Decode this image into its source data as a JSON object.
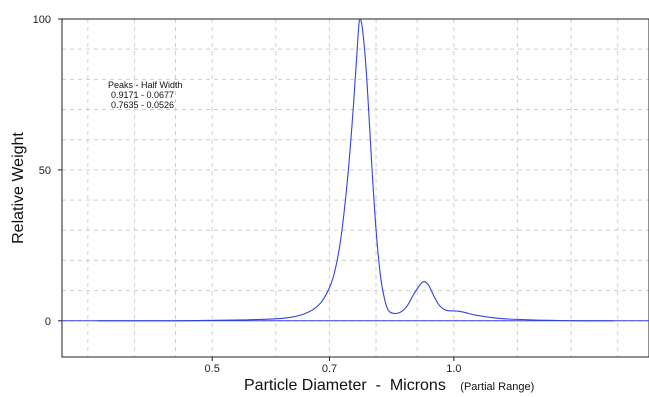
{
  "chart_data": {
    "type": "line",
    "title": "",
    "xlabel": "Particle Diameter  -  Microns",
    "xlabel_note": "(Partial Range)",
    "ylabel": "Relative Weight",
    "xscale": "log",
    "xlim": [
      0.325,
      1.75
    ],
    "ylim": [
      -12,
      100
    ],
    "x_ticks": [
      0.5,
      0.7,
      1.0
    ],
    "x_tick_labels": [
      "0.5",
      "0.7",
      "1.0"
    ],
    "y_ticks": [
      0,
      50,
      100
    ],
    "y_tick_labels": [
      "0",
      "50",
      "100"
    ],
    "grid": true,
    "series_color": "#3344dd",
    "series": [
      {
        "x": [
          0.36,
          0.45,
          0.52,
          0.55,
          0.58,
          0.61,
          0.63,
          0.65,
          0.67,
          0.685,
          0.7,
          0.71,
          0.72,
          0.73,
          0.74,
          0.75,
          0.757,
          0.763,
          0.77,
          0.78,
          0.79,
          0.8,
          0.81,
          0.82,
          0.83,
          0.845,
          0.86,
          0.875,
          0.89,
          0.905,
          0.917,
          0.93,
          0.945,
          0.96,
          0.975,
          0.99,
          1.01,
          1.03,
          1.06,
          1.1,
          1.15,
          1.25,
          1.35,
          1.45,
          1.58
        ],
        "y": [
          0,
          0,
          0.2,
          0.3,
          0.5,
          0.8,
          1.3,
          2.2,
          4.0,
          6.5,
          11,
          16,
          24,
          36,
          52,
          72,
          88,
          100,
          96,
          78,
          52,
          30,
          15,
          7,
          3.2,
          2.4,
          3.0,
          5.0,
          8.5,
          11.5,
          13,
          11.8,
          8,
          5,
          3.6,
          3.3,
          3.2,
          2.8,
          2.0,
          1.3,
          0.7,
          0.3,
          0.1,
          0,
          0
        ]
      }
    ],
    "annotation": {
      "header": "Peaks  -  Half Width",
      "rows": [
        "0.9171    -  0.0677",
        "0.7635    -  0.0526"
      ]
    }
  }
}
